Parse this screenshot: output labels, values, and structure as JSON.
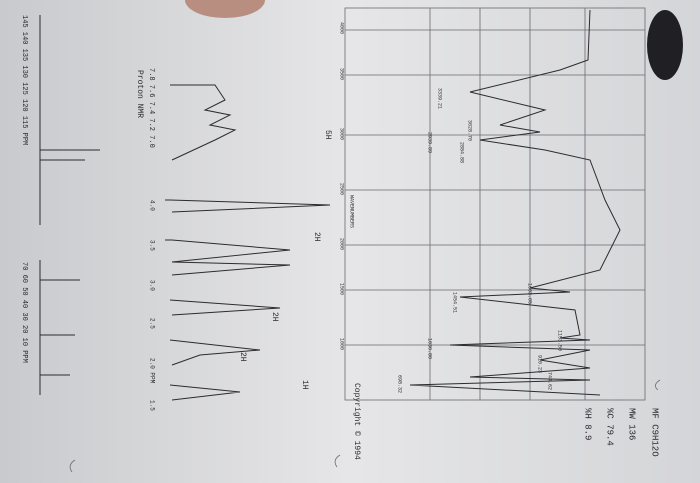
{
  "header": {
    "formula": "MF C9H12O",
    "mw": "MW 136",
    "carbon": "%C 79.4",
    "hydrogen": "%H 8.9"
  },
  "ir": {
    "axis_title": "WAVENUMBERS",
    "axis_labels": [
      "4000",
      "3500",
      "3000",
      "2500",
      "2000",
      "1500",
      "1000"
    ],
    "peaks": [
      "3339.21",
      "3028.70",
      "2939.89",
      "2884.88",
      "1603.05",
      "1454.51",
      "1153.50",
      "1030.80",
      "910.23",
      "744.62",
      "698.32"
    ],
    "copyright": "Copyright © 1994"
  },
  "proton_nmr": {
    "title": "Proton NMR",
    "inset_axis": "7.8 7.6 7.4 7.2 7.0",
    "axis": [
      "4.0",
      "3.5",
      "3.0",
      "2.5",
      "2.0 PPM",
      "1.5"
    ],
    "integrations": [
      "5H",
      "2H",
      "2H",
      "2H",
      "1H"
    ]
  },
  "carbon_nmr": {
    "axis_left": "145 140 135 130 125 120 115 PPM",
    "axis_right": "70 60 50 40 30 20 10 PPM"
  }
}
